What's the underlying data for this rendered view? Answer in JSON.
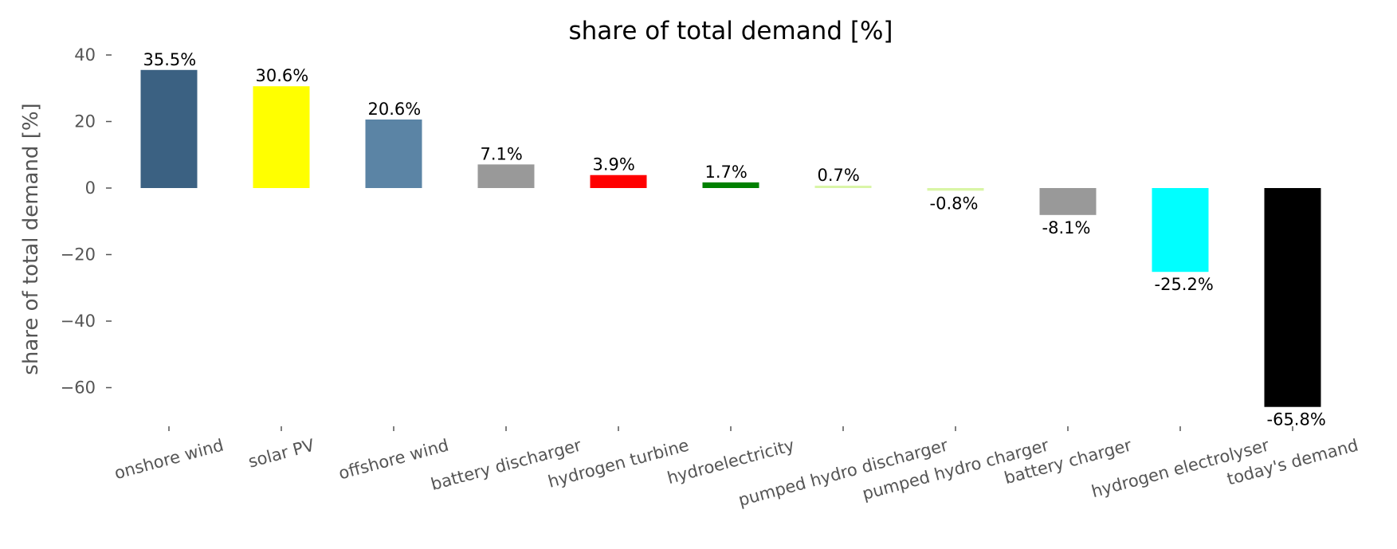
{
  "chart_data": {
    "type": "bar",
    "title": "share of total demand [%]",
    "xlabel": "",
    "ylabel": "share of total demand [%]",
    "ylim": [
      -72,
      42
    ],
    "yticks": [
      40,
      20,
      0,
      -20,
      -40,
      -60
    ],
    "grid": false,
    "categories": [
      "onshore wind",
      "solar PV",
      "offshore wind",
      "battery discharger",
      "hydrogen turbine",
      "hydroelectricity",
      "pumped hydro discharger",
      "pumped hydro charger",
      "battery charger",
      "hydrogen electrolyser",
      "today's demand"
    ],
    "values": [
      35.5,
      30.6,
      20.6,
      7.1,
      3.9,
      1.7,
      0.7,
      -0.8,
      -8.1,
      -25.2,
      -65.8
    ],
    "data_labels": [
      "35.5%",
      "30.6%",
      "20.6%",
      "7.1%",
      "3.9%",
      "1.7%",
      "0.7%",
      "-0.8%",
      "-8.1%",
      "-25.2%",
      "-65.8%"
    ],
    "colors": [
      "#3b6182",
      "#ffff00",
      "#5b84a5",
      "#999999",
      "#ff0000",
      "#008000",
      "#d9f5a6",
      "#d9f5a6",
      "#999999",
      "#00ffff",
      "#000000"
    ]
  }
}
